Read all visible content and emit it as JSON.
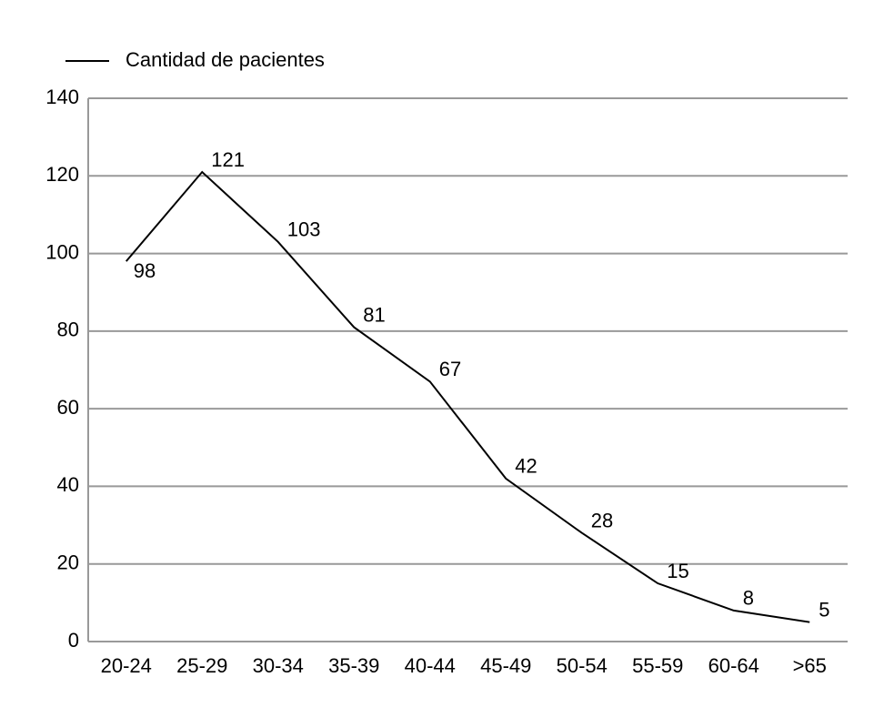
{
  "chart_data": {
    "type": "line",
    "categories": [
      "20-24",
      "25-29",
      "30-34",
      "35-39",
      "40-44",
      "45-49",
      "50-54",
      "55-59",
      "60-64",
      ">65"
    ],
    "series": [
      {
        "name": "Cantidad de pacientes",
        "color": "#000000",
        "values": [
          98,
          121,
          103,
          81,
          67,
          42,
          28,
          15,
          8,
          5
        ]
      }
    ],
    "ylim": [
      0,
      140
    ],
    "yticks": [
      0,
      20,
      40,
      60,
      80,
      100,
      120,
      140
    ],
    "grid": true,
    "grid_color": "#999999",
    "legend": "top-left",
    "data_labels": true
  }
}
